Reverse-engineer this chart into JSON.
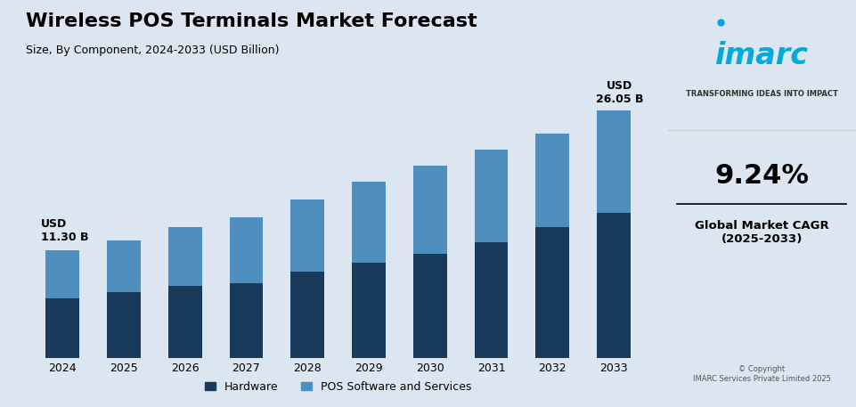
{
  "title": "Wireless POS Terminals Market Forecast",
  "subtitle": "Size, By Component, 2024-2033 (USD Billion)",
  "years": [
    2024,
    2025,
    2026,
    2027,
    2028,
    2029,
    2030,
    2031,
    2032,
    2033
  ],
  "hardware": [
    6.3,
    6.9,
    7.6,
    7.9,
    9.1,
    10.0,
    11.0,
    12.2,
    13.8,
    15.3
  ],
  "software": [
    5.0,
    5.5,
    6.2,
    6.9,
    7.6,
    8.5,
    9.2,
    9.7,
    9.8,
    10.75
  ],
  "first_label": "USD\n11.30 B",
  "last_label": "USD\n26.05 B",
  "hardware_color": "#1a3a5c",
  "software_color": "#4f8fbf",
  "bg_color": "#dce6f0",
  "hardware_legend": "Hardware",
  "software_legend": "POS Software and Services",
  "cagr_text": "9.24%",
  "cagr_label": "Global Market CAGR\n(2025-2033)",
  "copyright_text": "© Copyright\nIMARC Services Private Limited 2025",
  "imarc_tagline": "TRANSFORMING IDEAS INTO IMPACT"
}
